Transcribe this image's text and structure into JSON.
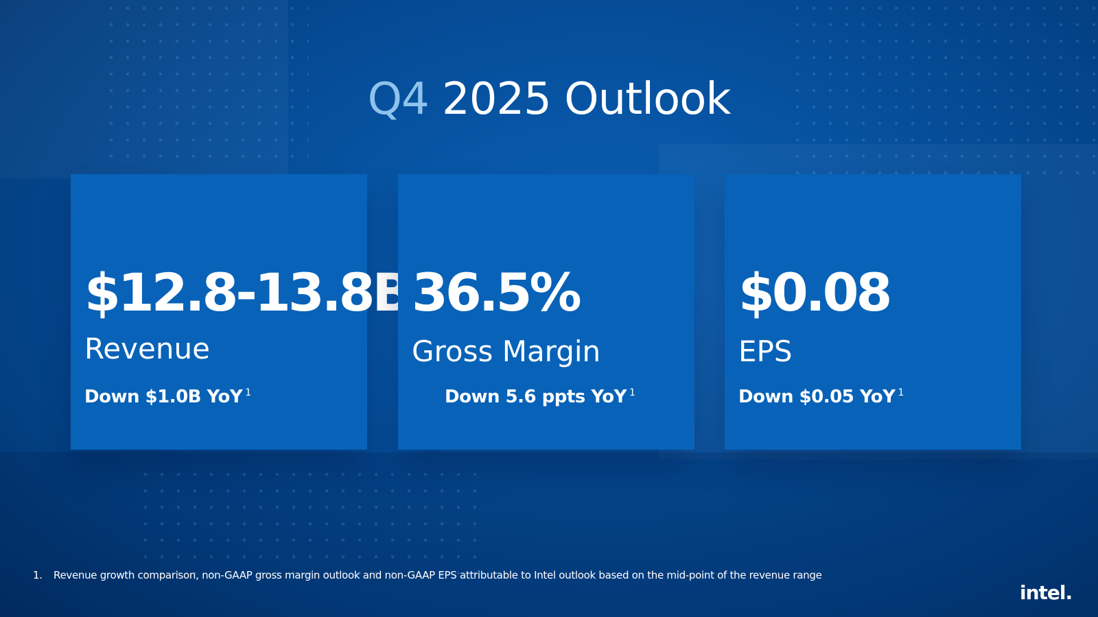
{
  "header": {
    "title_prefix": "Q4",
    "title": "2025 Outlook"
  },
  "cards": [
    {
      "value": "$12.8-13.8B",
      "label": "Revenue",
      "note": "Down $1.0B YoY",
      "footnote_ref": "1"
    },
    {
      "value": "36.5%",
      "label": "Gross Margin",
      "note": "Down 5.6 ppts YoY",
      "footnote_ref": "1"
    },
    {
      "value": "$0.08",
      "label": "EPS",
      "note": "Down $0.05 YoY",
      "footnote_ref": "1"
    }
  ],
  "footnote": {
    "number": "1.",
    "text": "Revenue growth comparison, non-GAAP gross margin outlook and non-GAAP EPS attributable to Intel outlook based on the mid-point of the revenue range"
  },
  "logo": "intel."
}
